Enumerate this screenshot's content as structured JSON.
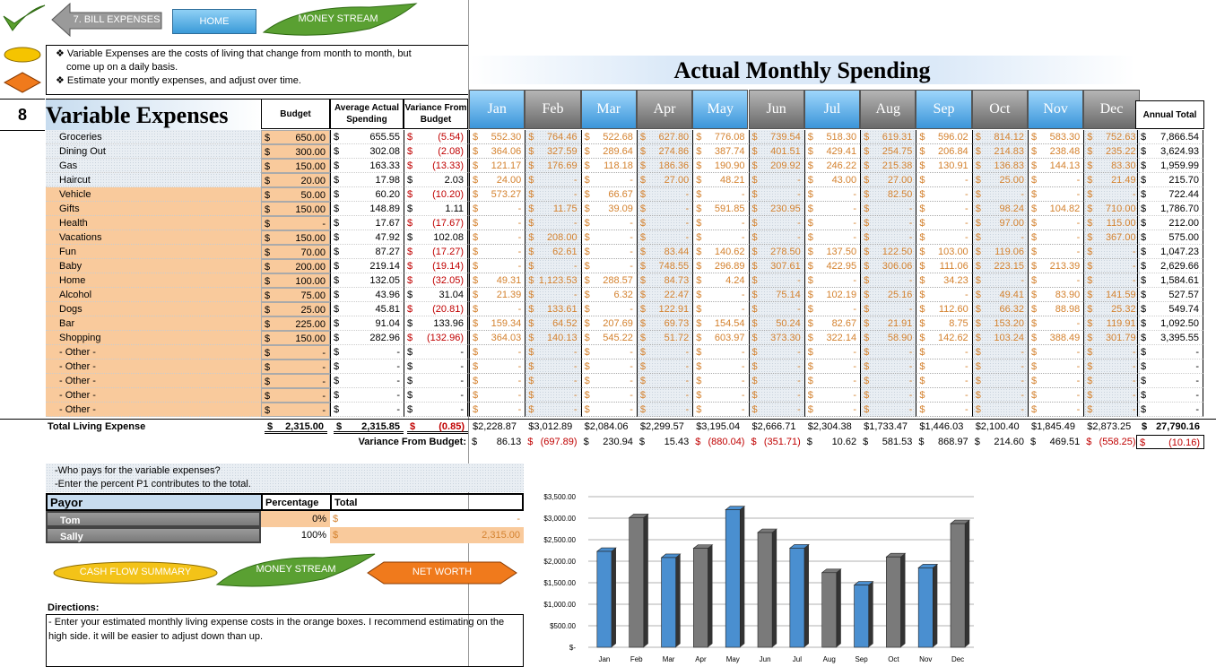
{
  "nav": {
    "back_label": "7. BILL EXPENSES",
    "home_label": "HOME",
    "money_stream_label": "MONEY STREAM"
  },
  "notes": [
    "❖ Variable Expenses are the costs of living that change from month to month, but",
    "come up on a daily basis.",
    "❖ Estimate your montly expenses, and adjust over time."
  ],
  "title": "Actual Monthly Spending",
  "section_number": "8",
  "section_title": "Variable Expenses",
  "headers": {
    "budget": "Budget",
    "average": "Average Actual Spending",
    "variance": "Variance From Budget",
    "annual": "Annual Total"
  },
  "months": [
    "Jan",
    "Feb",
    "Mar",
    "Apr",
    "May",
    "Jun",
    "Jul",
    "Aug",
    "Sep",
    "Oct",
    "Nov",
    "Dec"
  ],
  "rows": [
    {
      "name": "Groceries",
      "budget": "650.00",
      "avg": "655.55",
      "var": "(5.54)",
      "var_neg": true,
      "m": [
        "552.30",
        "764.46",
        "522.68",
        "627.80",
        "776.08",
        "739.54",
        "518.30",
        "619.31",
        "596.02",
        "814.12",
        "583.30",
        "752.63"
      ],
      "annual": "7,866.54",
      "orange": false
    },
    {
      "name": "Dining Out",
      "budget": "300.00",
      "avg": "302.08",
      "var": "(2.08)",
      "var_neg": true,
      "m": [
        "364.06",
        "327.59",
        "289.64",
        "274.86",
        "387.74",
        "401.51",
        "429.41",
        "254.75",
        "206.84",
        "214.83",
        "238.48",
        "235.22"
      ],
      "annual": "3,624.93",
      "orange": false
    },
    {
      "name": "Gas",
      "budget": "150.00",
      "avg": "163.33",
      "var": "(13.33)",
      "var_neg": true,
      "m": [
        "121.17",
        "176.69",
        "118.18",
        "186.36",
        "190.90",
        "209.92",
        "246.22",
        "215.38",
        "130.91",
        "136.83",
        "144.13",
        "83.30"
      ],
      "annual": "1,959.99",
      "orange": false
    },
    {
      "name": "Haircut",
      "budget": "20.00",
      "avg": "17.98",
      "var": "2.03",
      "var_neg": false,
      "m": [
        "24.00",
        "-",
        "-",
        "27.00",
        "48.21",
        "-",
        "43.00",
        "27.00",
        "-",
        "25.00",
        "-",
        "21.49"
      ],
      "annual": "215.70",
      "orange": false
    },
    {
      "name": "Vehicle",
      "budget": "50.00",
      "avg": "60.20",
      "var": "(10.20)",
      "var_neg": true,
      "m": [
        "573.27",
        "-",
        "66.67",
        "-",
        "-",
        "-",
        "-",
        "82.50",
        "-",
        "-",
        "-",
        "-"
      ],
      "annual": "722.44",
      "orange": true
    },
    {
      "name": "Gifts",
      "budget": "150.00",
      "avg": "148.89",
      "var": "1.11",
      "var_neg": false,
      "m": [
        "-",
        "11.75",
        "39.09",
        "-",
        "591.85",
        "230.95",
        "-",
        "-",
        "-",
        "98.24",
        "104.82",
        "710.00"
      ],
      "annual": "1,786.70",
      "orange": true
    },
    {
      "name": "Health",
      "budget": "-",
      "avg": "17.67",
      "var": "(17.67)",
      "var_neg": true,
      "m": [
        "-",
        "-",
        "-",
        "-",
        "-",
        "-",
        "-",
        "-",
        "-",
        "97.00",
        "-",
        "115.00"
      ],
      "annual": "212.00",
      "orange": true
    },
    {
      "name": "Vacations",
      "budget": "150.00",
      "avg": "47.92",
      "var": "102.08",
      "var_neg": false,
      "m": [
        "-",
        "208.00",
        "-",
        "-",
        "-",
        "-",
        "-",
        "-",
        "-",
        "-",
        "-",
        "367.00"
      ],
      "annual": "575.00",
      "orange": true
    },
    {
      "name": "Fun",
      "budget": "70.00",
      "avg": "87.27",
      "var": "(17.27)",
      "var_neg": true,
      "m": [
        "-",
        "62.61",
        "-",
        "83.44",
        "140.62",
        "278.50",
        "137.50",
        "122.50",
        "103.00",
        "119.06",
        "-",
        "-"
      ],
      "annual": "1,047.23",
      "orange": true
    },
    {
      "name": "Baby",
      "budget": "200.00",
      "avg": "219.14",
      "var": "(19.14)",
      "var_neg": true,
      "m": [
        "-",
        "-",
        "-",
        "748.55",
        "296.89",
        "307.61",
        "422.95",
        "306.06",
        "111.06",
        "223.15",
        "213.39",
        "-"
      ],
      "annual": "2,629.66",
      "orange": true
    },
    {
      "name": "Home",
      "budget": "100.00",
      "avg": "132.05",
      "var": "(32.05)",
      "var_neg": true,
      "m": [
        "49.31",
        "1,123.53",
        "288.57",
        "84.73",
        "4.24",
        "-",
        "-",
        "-",
        "34.23",
        "-",
        "-",
        "-"
      ],
      "annual": "1,584.61",
      "orange": true
    },
    {
      "name": "Alcohol",
      "budget": "75.00",
      "avg": "43.96",
      "var": "31.04",
      "var_neg": false,
      "m": [
        "21.39",
        "-",
        "6.32",
        "22.47",
        "-",
        "75.14",
        "102.19",
        "25.16",
        "-",
        "49.41",
        "83.90",
        "141.59"
      ],
      "annual": "527.57",
      "orange": true
    },
    {
      "name": "Dogs",
      "budget": "25.00",
      "avg": "45.81",
      "var": "(20.81)",
      "var_neg": true,
      "m": [
        "-",
        "133.61",
        "-",
        "122.91",
        "-",
        "-",
        "-",
        "-",
        "112.60",
        "66.32",
        "88.98",
        "25.32"
      ],
      "annual": "549.74",
      "orange": true
    },
    {
      "name": "Bar",
      "budget": "225.00",
      "avg": "91.04",
      "var": "133.96",
      "var_neg": false,
      "m": [
        "159.34",
        "64.52",
        "207.69",
        "69.73",
        "154.54",
        "50.24",
        "82.67",
        "21.91",
        "8.75",
        "153.20",
        "-",
        "119.91"
      ],
      "annual": "1,092.50",
      "orange": true
    },
    {
      "name": "Shopping",
      "budget": "150.00",
      "avg": "282.96",
      "var": "(132.96)",
      "var_neg": true,
      "m": [
        "364.03",
        "140.13",
        "545.22",
        "51.72",
        "603.97",
        "373.30",
        "322.14",
        "58.90",
        "142.62",
        "103.24",
        "388.49",
        "301.79"
      ],
      "annual": "3,395.55",
      "orange": true
    },
    {
      "name": "- Other -",
      "budget": "-",
      "avg": "-",
      "var": "-",
      "var_neg": false,
      "m": [
        "-",
        "-",
        "-",
        "-",
        "-",
        "-",
        "-",
        "-",
        "-",
        "-",
        "-",
        "-"
      ],
      "annual": "-",
      "orange": true
    },
    {
      "name": "- Other -",
      "budget": "-",
      "avg": "-",
      "var": "-",
      "var_neg": false,
      "m": [
        "-",
        "-",
        "-",
        "-",
        "-",
        "-",
        "-",
        "-",
        "-",
        "-",
        "-",
        "-"
      ],
      "annual": "-",
      "orange": true
    },
    {
      "name": "- Other -",
      "budget": "-",
      "avg": "-",
      "var": "-",
      "var_neg": false,
      "m": [
        "-",
        "-",
        "-",
        "-",
        "-",
        "-",
        "-",
        "-",
        "-",
        "-",
        "-",
        "-"
      ],
      "annual": "-",
      "orange": true
    },
    {
      "name": "- Other -",
      "budget": "-",
      "avg": "-",
      "var": "-",
      "var_neg": false,
      "m": [
        "-",
        "-",
        "-",
        "-",
        "-",
        "-",
        "-",
        "-",
        "-",
        "-",
        "-",
        "-"
      ],
      "annual": "-",
      "orange": true
    },
    {
      "name": "- Other -",
      "budget": "-",
      "avg": "-",
      "var": "-",
      "var_neg": false,
      "m": [
        "-",
        "-",
        "-",
        "-",
        "-",
        "-",
        "-",
        "-",
        "-",
        "-",
        "-",
        "-"
      ],
      "annual": "-",
      "orange": true
    }
  ],
  "totals": {
    "label": "Total Living Expense",
    "budget": "2,315.00",
    "avg": "2,315.85",
    "var": "(0.85)",
    "months": [
      "$2,228.87",
      "$3,012.89",
      "$2,084.06",
      "$2,299.57",
      "$3,195.04",
      "$2,666.71",
      "$2,304.38",
      "$1,733.47",
      "$1,446.03",
      "$2,100.40",
      "$1,845.49",
      "$2,873.25"
    ],
    "annual": "27,790.16"
  },
  "variance": {
    "label": "Variance From Budget:",
    "months": [
      {
        "v": "86.13",
        "neg": false
      },
      {
        "v": "(697.89)",
        "neg": true
      },
      {
        "v": "230.94",
        "neg": false
      },
      {
        "v": "15.43",
        "neg": false
      },
      {
        "v": "(880.04)",
        "neg": true
      },
      {
        "v": "(351.71)",
        "neg": true
      },
      {
        "v": "10.62",
        "neg": false
      },
      {
        "v": "581.53",
        "neg": false
      },
      {
        "v": "868.97",
        "neg": false
      },
      {
        "v": "214.60",
        "neg": false
      },
      {
        "v": "469.51",
        "neg": false
      },
      {
        "v": "(558.25)",
        "neg": true
      }
    ],
    "annual": "(10.16)"
  },
  "payor": {
    "q1": "-Who pays for the variable expenses?",
    "q2": "-Enter the percent P1 contributes to the total.",
    "h_payor": "Payor",
    "h_pct": "Percentage",
    "h_total": "Total",
    "rows": [
      {
        "name": "Tom",
        "pct": "0%",
        "total": "-"
      },
      {
        "name": "Sally",
        "pct": "100%",
        "total": "2,315.00"
      }
    ]
  },
  "buttons": {
    "cash_flow": "CASH FLOW SUMMARY",
    "money_stream": "MONEY STREAM",
    "net_worth": "NET WORTH"
  },
  "directions": {
    "title": "Directions:",
    "text": "- Enter your estimated monthly living expense costs in the orange boxes.  I recommend estimating on the high side. it will be easier to adjust down than up."
  },
  "colors": {
    "blue_month": "#3b95d9",
    "gray_month": "#6a6a6a",
    "orange_cell": "#f9ca9c",
    "negative": "#c00000"
  },
  "chart_data": {
    "type": "bar",
    "categories": [
      "Jan",
      "Feb",
      "Mar",
      "Apr",
      "May",
      "Jun",
      "Jul",
      "Aug",
      "Sep",
      "Oct",
      "Nov",
      "Dec"
    ],
    "values": [
      2228.87,
      3012.89,
      2084.06,
      2299.57,
      3195.04,
      2666.71,
      2304.38,
      1733.47,
      1446.03,
      2100.4,
      1845.49,
      2873.25
    ],
    "ylim": [
      0,
      3500
    ],
    "ytick_labels": [
      "$-",
      "$500.00",
      "$1,000.00",
      "$1,500.00",
      "$2,000.00",
      "$2,500.00",
      "$3,000.00",
      "$3,500.00"
    ],
    "colors": [
      "#4a8fd0",
      "#7a7a7a"
    ],
    "grid": true
  }
}
